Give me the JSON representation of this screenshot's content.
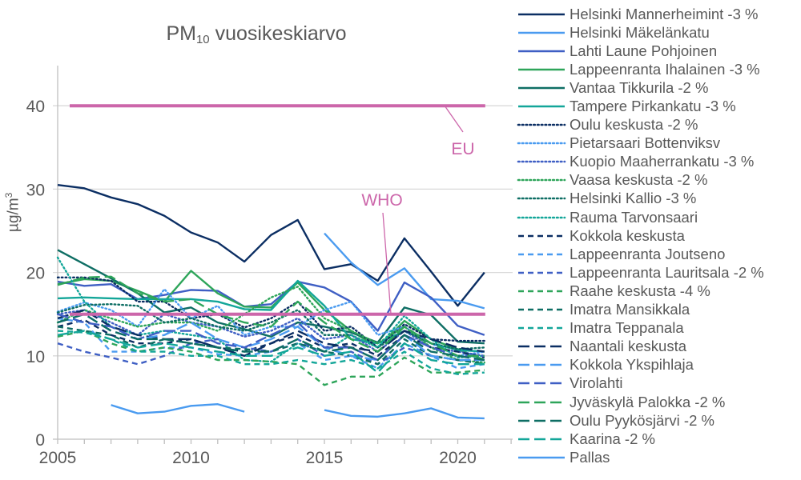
{
  "chart_data": {
    "type": "line",
    "title": "PM10 vuosikeskiarvo",
    "title_main": "PM",
    "title_sub": "10",
    "title_rest": " vuosikeskiarvo",
    "xlabel": "",
    "ylabel": "µg/m3",
    "ylabel_main": "µg/m",
    "ylabel_sup": "3",
    "xlim": [
      2005,
      2022
    ],
    "ylim": [
      0,
      45
    ],
    "x_ticks": [
      2005,
      2010,
      2015,
      2020
    ],
    "y_ticks": [
      0,
      10,
      20,
      30,
      40
    ],
    "grid": "horizontal",
    "legend_position": "right",
    "x": [
      2005,
      2006,
      2007,
      2008,
      2009,
      2010,
      2011,
      2012,
      2013,
      2014,
      2015,
      2016,
      2017,
      2018,
      2019,
      2020,
      2021
    ],
    "reference_lines": [
      {
        "name": "EU",
        "value": 40,
        "color": "#CC66AA",
        "label": "EU"
      },
      {
        "name": "WHO",
        "value": 15,
        "color": "#CC66AA",
        "label": "WHO"
      }
    ],
    "series": [
      {
        "name": "Helsinki Mannerheimint -3 %",
        "color": "#0B2E63",
        "dash": "solid",
        "values": [
          30.5,
          30.1,
          29.0,
          28.2,
          26.8,
          24.8,
          23.6,
          21.3,
          24.5,
          26.3,
          20.4,
          21.0,
          19.0,
          24.1,
          20.1,
          16.0,
          20.0
        ]
      },
      {
        "name": "Helsinki Mäkelänkatu",
        "color": "#4A9BF0",
        "dash": "solid",
        "values": [
          null,
          null,
          null,
          null,
          null,
          null,
          null,
          null,
          null,
          null,
          24.7,
          21.2,
          18.5,
          20.5,
          16.8,
          16.6,
          15.7
        ]
      },
      {
        "name": "Lahti Laune Pohjoinen",
        "color": "#3F5FC4",
        "dash": "solid",
        "values": [
          18.9,
          18.4,
          18.6,
          16.8,
          17.3,
          17.9,
          17.8,
          15.9,
          16.2,
          18.9,
          18.2,
          16.5,
          13.0,
          18.8,
          17.0,
          13.6,
          12.5
        ]
      },
      {
        "name": "Lappeenranta Ihalainen -3 %",
        "color": "#2EA55A",
        "dash": "solid",
        "values": [
          18.6,
          19.2,
          19.0,
          17.8,
          16.5,
          20.2,
          17.5,
          15.9,
          15.8,
          18.8,
          15.5,
          13.0,
          11.0,
          14.2,
          12.0,
          10.8,
          9.5
        ]
      },
      {
        "name": "Vantaa Tikkurila -2 %",
        "color": "#0E6E64",
        "dash": "solid",
        "values": [
          22.7,
          21.0,
          19.3,
          17.5,
          15.2,
          15.8,
          14.0,
          13.2,
          12.3,
          14.0,
          13.5,
          12.8,
          11.6,
          15.8,
          14.9,
          11.7,
          11.5
        ]
      },
      {
        "name": "Tampere Pirkankatu -3 %",
        "color": "#13A699",
        "dash": "solid",
        "values": [
          16.9,
          17.0,
          16.9,
          16.8,
          16.8,
          16.8,
          16.5,
          15.6,
          15.5,
          19.0,
          16.0,
          12.0,
          11.5,
          13.0,
          11.5,
          10.7,
          10.5
        ]
      },
      {
        "name": "Oulu keskusta -2 %",
        "color": "#0B2E63",
        "dash": "dotted",
        "values": [
          19.4,
          19.4,
          19.0,
          16.5,
          16.5,
          14.5,
          15.0,
          13.4,
          14.5,
          16.5,
          13.0,
          13.5,
          11.0,
          13.8,
          12.0,
          11.8,
          11.8
        ]
      },
      {
        "name": "Pietarsaari Bottenviksv",
        "color": "#4A9BF0",
        "dash": "dotted",
        "values": [
          15.3,
          16.4,
          15.5,
          13.5,
          18.0,
          14.5,
          16.0,
          12.5,
          13.5,
          13.5,
          15.5,
          16.5,
          12.5,
          13.5,
          11.5,
          10.0,
          10.5
        ]
      },
      {
        "name": "Kuopio Maaherrankatu -3 %",
        "color": "#3F5FC4",
        "dash": "dotted",
        "values": [
          15.0,
          15.5,
          14.0,
          12.5,
          15.0,
          14.0,
          13.5,
          12.3,
          13.0,
          14.5,
          12.0,
          12.5,
          10.5,
          13.0,
          11.0,
          10.5,
          10.0
        ]
      },
      {
        "name": "Vaasa keskusta -2 %",
        "color": "#2EA55A",
        "dash": "dotted",
        "values": [
          14.0,
          15.5,
          14.5,
          13.5,
          14.0,
          14.0,
          13.0,
          15.0,
          17.0,
          18.3,
          14.5,
          13.0,
          11.5,
          13.5,
          11.0,
          9.5,
          9.2
        ]
      },
      {
        "name": "Helsinki Kallio -3 %",
        "color": "#0E6E64",
        "dash": "dotted",
        "values": [
          15.2,
          16.1,
          16.2,
          16.0,
          14.0,
          14.5,
          13.5,
          13.0,
          14.0,
          15.5,
          12.5,
          12.5,
          11.0,
          13.0,
          11.5,
          10.8,
          11.0
        ]
      },
      {
        "name": "Rauma Tarvonsaari",
        "color": "#13A699",
        "dash": "dotted",
        "values": [
          21.8,
          16.5,
          13.5,
          12.5,
          13.0,
          12.5,
          12.0,
          9.5,
          9.3,
          11.5,
          10.5,
          12.5,
          11.0,
          14.8,
          12.0,
          9.8,
          10.0
        ]
      },
      {
        "name": "Kokkola keskusta",
        "color": "#0B2E63",
        "dash": "dashed",
        "values": [
          13.5,
          14.3,
          12.5,
          11.5,
          11.5,
          12.0,
          11.0,
          10.5,
          11.5,
          12.5,
          11.0,
          11.5,
          10.0,
          12.5,
          11.0,
          10.5,
          9.8
        ]
      },
      {
        "name": "Lappeenranta Joutseno",
        "color": "#4A9BF0",
        "dash": "dashed",
        "values": [
          14.5,
          14.0,
          10.5,
          10.5,
          11.0,
          11.0,
          10.2,
          10.0,
          10.5,
          11.5,
          9.5,
          10.0,
          8.5,
          11.5,
          10.0,
          8.5,
          9.0
        ]
      },
      {
        "name": "Lappeenranta Lauritsala -2 %",
        "color": "#3F5FC4",
        "dash": "dashed",
        "values": [
          11.5,
          10.5,
          9.8,
          9.0,
          10.0,
          11.5,
          12.0,
          11.0,
          10.5,
          12.0,
          10.0,
          10.5,
          9.0,
          11.0,
          10.0,
          9.5,
          9.5
        ]
      },
      {
        "name": "Raahe keskusta -4 %",
        "color": "#2EA55A",
        "dash": "dashed",
        "values": [
          12.3,
          13.0,
          11.5,
          10.5,
          11.0,
          10.5,
          9.5,
          9.5,
          9.3,
          9.0,
          6.5,
          7.5,
          7.5,
          9.8,
          8.0,
          8.0,
          8.3
        ]
      },
      {
        "name": "Imatra Mansikkala",
        "color": "#0E6E64",
        "dash": "dashed",
        "values": [
          13.5,
          13.0,
          12.5,
          11.0,
          12.0,
          11.5,
          11.0,
          10.8,
          10.5,
          11.5,
          10.5,
          10.0,
          9.0,
          12.0,
          10.0,
          9.5,
          9.0
        ]
      },
      {
        "name": "Imatra Teppanala",
        "color": "#13A699",
        "dash": "dashed",
        "values": [
          13.0,
          12.8,
          12.0,
          10.5,
          10.5,
          10.0,
          10.0,
          9.0,
          9.0,
          9.5,
          9.0,
          9.5,
          8.5,
          10.5,
          8.5,
          7.8,
          8.0
        ]
      },
      {
        "name": "Naantali keskusta",
        "color": "#0B2E63",
        "dash": "longdash",
        "values": [
          14.5,
          15.5,
          13.5,
          12.5,
          12.0,
          12.0,
          11.0,
          10.0,
          11.5,
          13.0,
          11.5,
          11.0,
          10.5,
          13.0,
          12.0,
          11.0,
          10.5
        ]
      },
      {
        "name": "Kokkola Ykspihlaja",
        "color": "#4A9BF0",
        "dash": "longdash",
        "values": [
          14.0,
          15.0,
          13.0,
          12.0,
          12.5,
          14.0,
          12.0,
          11.0,
          12.0,
          13.5,
          11.0,
          10.0,
          9.5,
          12.5,
          10.0,
          9.5,
          9.5
        ]
      },
      {
        "name": "Virolahti",
        "color": "#3F5FC4",
        "dash": "longdash",
        "values": [
          15.0,
          14.0,
          13.5,
          12.0,
          13.0,
          13.0,
          11.5,
          11.0,
          12.5,
          14.0,
          11.0,
          11.0,
          9.5,
          12.5,
          11.0,
          10.0,
          10.0
        ]
      },
      {
        "name": "Jyväskylä Palokka -2 %",
        "color": "#2EA55A",
        "dash": "longdash",
        "values": [
          18.5,
          19.4,
          19.5,
          17.5,
          16.5,
          16.8,
          15.0,
          14.0,
          13.5,
          16.5,
          14.0,
          12.0,
          10.5,
          13.5,
          11.5,
          10.0,
          10.0
        ]
      },
      {
        "name": "Oulu Pyykösjärvi -2 %",
        "color": "#0E6E64",
        "dash": "longdash",
        "values": [
          14.0,
          15.0,
          13.0,
          12.0,
          12.0,
          11.5,
          11.0,
          10.5,
          10.5,
          12.0,
          10.5,
          11.0,
          9.5,
          12.5,
          10.5,
          10.0,
          9.5
        ]
      },
      {
        "name": "Kaarina -2 %",
        "color": "#13A699",
        "dash": "longdash",
        "values": [
          12.5,
          13.0,
          12.0,
          11.0,
          11.5,
          11.0,
          10.5,
          10.0,
          10.0,
          11.0,
          10.0,
          10.5,
          8.0,
          11.5,
          9.5,
          9.0,
          9.0
        ]
      },
      {
        "name": "Pallas",
        "color": "#4A9BF0",
        "dash": "solid",
        "values": [
          null,
          null,
          4.1,
          3.1,
          3.3,
          4.0,
          4.2,
          3.3,
          null,
          null,
          3.5,
          2.8,
          2.7,
          3.1,
          3.7,
          2.6,
          2.5
        ]
      }
    ],
    "annotations": [
      {
        "text": "EU",
        "color": "#CC66AA"
      },
      {
        "text": "WHO",
        "color": "#CC66AA"
      }
    ]
  },
  "colors": {
    "reference_line": "#CC66AA",
    "grid": "#D9D9D9",
    "axis": "#BFBFBF",
    "text": "#595959"
  }
}
